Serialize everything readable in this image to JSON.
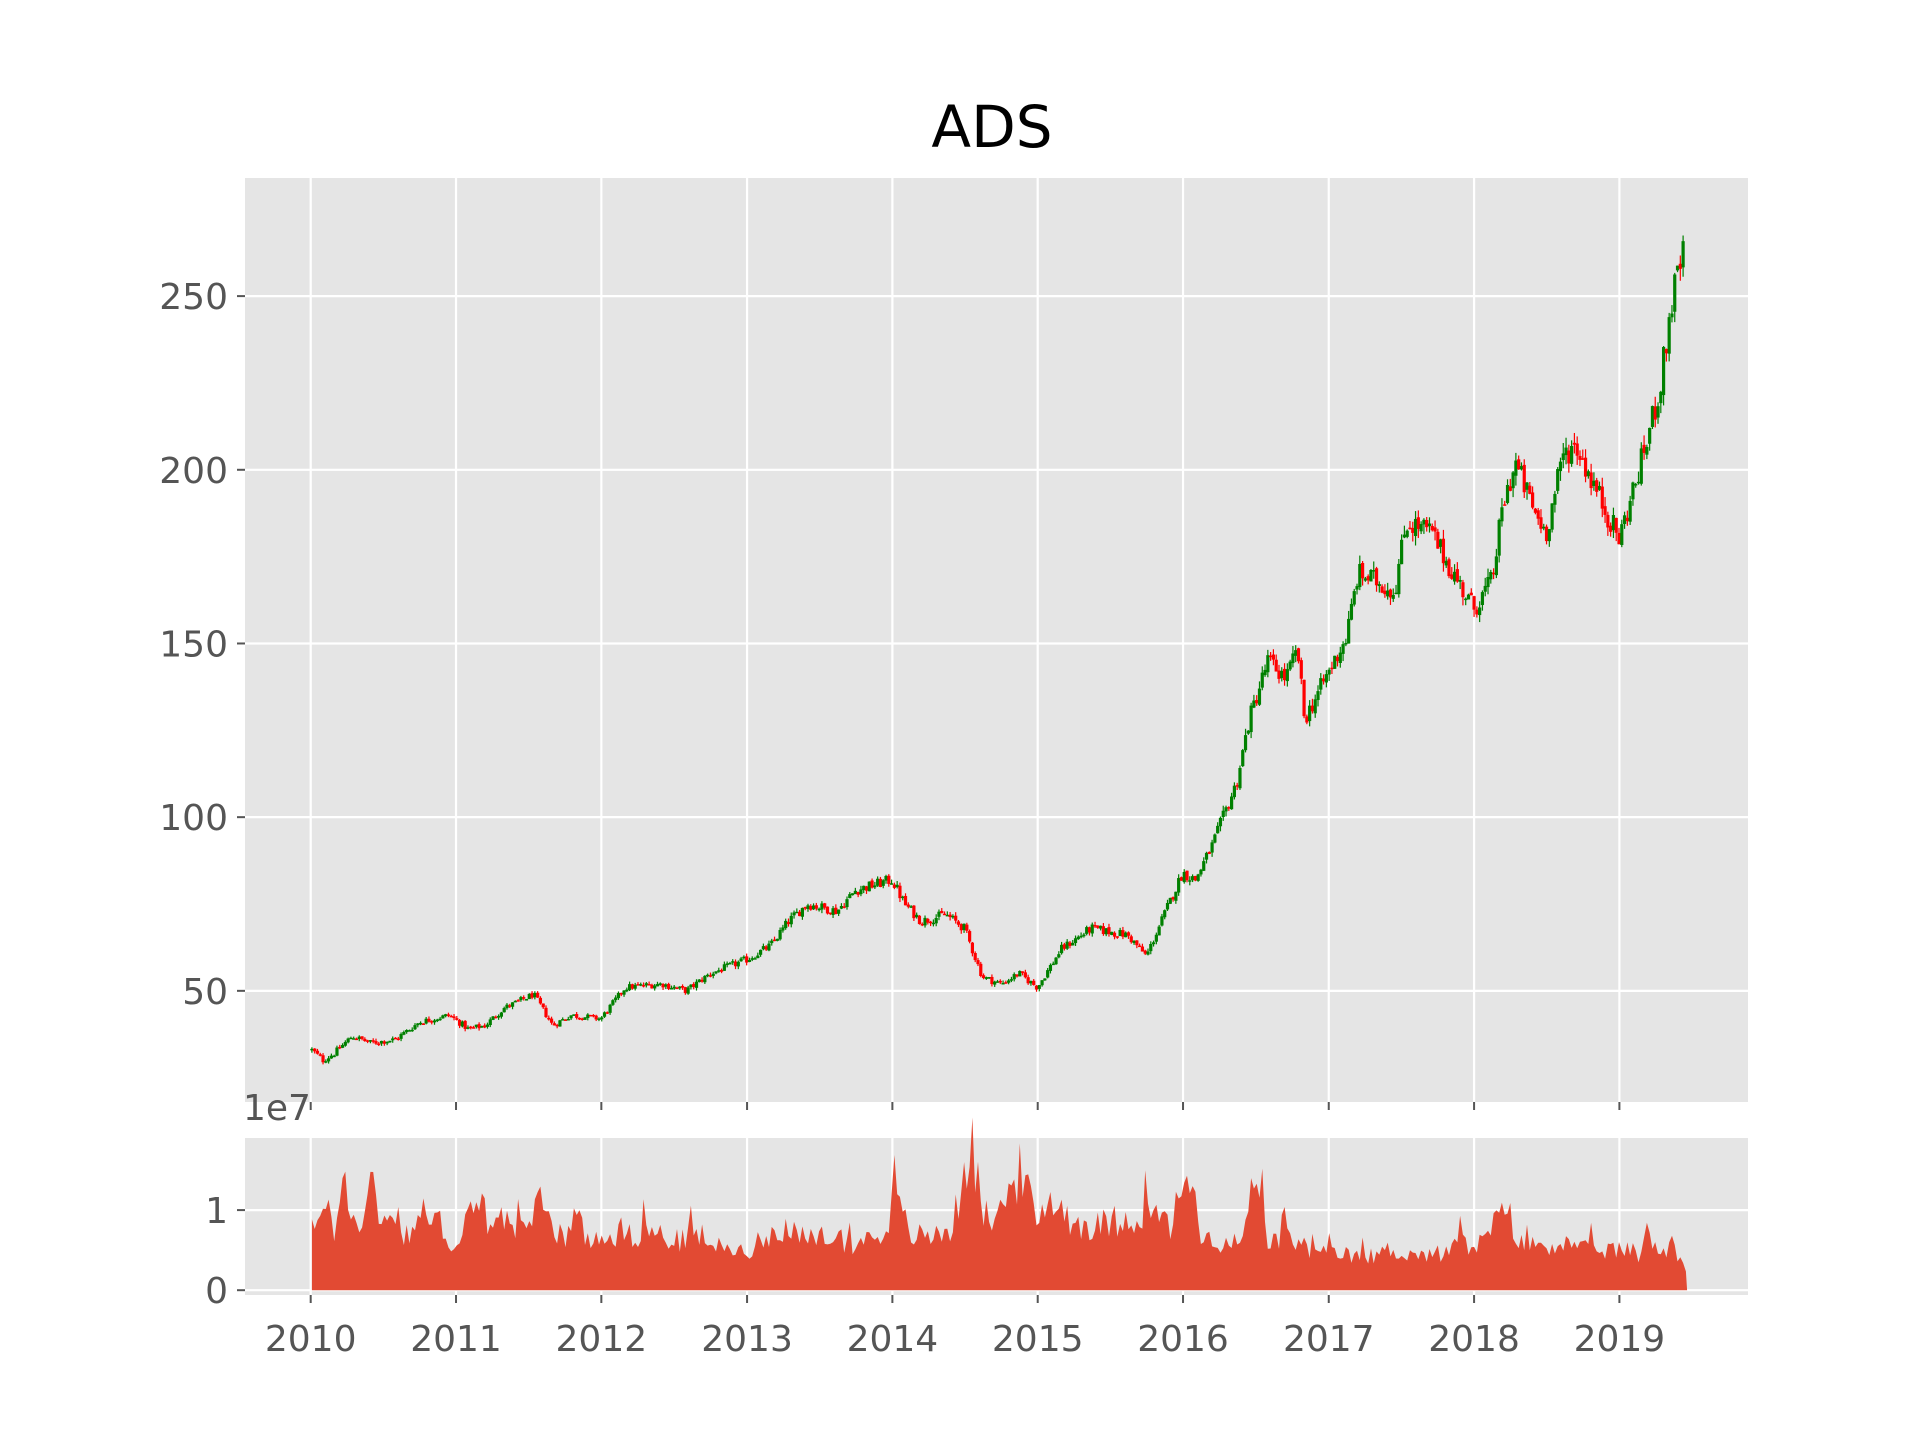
{
  "chart_data": [
    {
      "type": "candlestick",
      "title": "ADS",
      "xlabel": "",
      "ylabel": "",
      "x_ticks": [
        "2010",
        "2011",
        "2012",
        "2013",
        "2014",
        "2015",
        "2016",
        "2017",
        "2018",
        "2019"
      ],
      "y_ticks": [
        50,
        100,
        150,
        200,
        250
      ],
      "xlim": [
        "2009-07-20",
        "2019-11-20"
      ],
      "ylim": [
        18,
        284
      ],
      "grid": true,
      "up_color": "#008000",
      "down_color": "#ff0000",
      "background": "#e5e5e5",
      "price_path": [
        [
          "2010-01-04",
          33
        ],
        [
          "2010-02-01",
          30
        ],
        [
          "2010-03-01",
          32
        ],
        [
          "2010-04-15",
          37
        ],
        [
          "2010-06-01",
          35
        ],
        [
          "2010-08-01",
          36
        ],
        [
          "2010-10-01",
          41
        ],
        [
          "2010-12-15",
          43
        ],
        [
          "2011-02-01",
          39
        ],
        [
          "2011-03-15",
          40
        ],
        [
          "2011-05-01",
          45
        ],
        [
          "2011-07-15",
          49
        ],
        [
          "2011-09-01",
          40
        ],
        [
          "2011-10-15",
          43
        ],
        [
          "2011-12-31",
          42
        ],
        [
          "2012-03-01",
          51
        ],
        [
          "2012-06-01",
          52
        ],
        [
          "2012-08-01",
          50
        ],
        [
          "2012-10-01",
          55
        ],
        [
          "2012-12-31",
          59
        ],
        [
          "2013-03-01",
          63
        ],
        [
          "2013-04-15",
          70
        ],
        [
          "2013-06-01",
          75
        ],
        [
          "2013-08-15",
          73
        ],
        [
          "2013-10-01",
          79
        ],
        [
          "2013-12-31",
          82
        ],
        [
          "2014-02-01",
          75
        ],
        [
          "2014-03-15",
          70
        ],
        [
          "2014-05-15",
          72
        ],
        [
          "2014-07-01",
          68
        ],
        [
          "2014-08-15",
          54
        ],
        [
          "2014-10-01",
          52
        ],
        [
          "2014-11-15",
          55
        ],
        [
          "2014-12-31",
          51
        ],
        [
          "2015-03-01",
          62
        ],
        [
          "2015-05-15",
          68
        ],
        [
          "2015-08-15",
          66
        ],
        [
          "2015-10-01",
          60
        ],
        [
          "2015-11-15",
          72
        ],
        [
          "2015-12-31",
          84
        ],
        [
          "2016-02-01",
          82
        ],
        [
          "2016-03-15",
          92
        ],
        [
          "2016-05-15",
          110
        ],
        [
          "2016-06-15",
          128
        ],
        [
          "2016-08-01",
          145
        ],
        [
          "2016-09-15",
          140
        ],
        [
          "2016-10-15",
          148
        ],
        [
          "2016-11-01",
          128
        ],
        [
          "2016-12-15",
          138
        ],
        [
          "2017-02-15",
          152
        ],
        [
          "2017-03-15",
          170
        ],
        [
          "2017-05-01",
          168
        ],
        [
          "2017-06-15",
          165
        ],
        [
          "2017-07-15",
          185
        ],
        [
          "2017-09-15",
          182
        ],
        [
          "2017-11-01",
          172
        ],
        [
          "2017-12-31",
          160
        ],
        [
          "2018-02-15",
          168
        ],
        [
          "2018-03-15",
          190
        ],
        [
          "2018-04-15",
          202
        ],
        [
          "2018-06-01",
          188
        ],
        [
          "2018-07-01",
          182
        ],
        [
          "2018-08-15",
          205
        ],
        [
          "2018-09-15",
          207
        ],
        [
          "2018-11-01",
          195
        ],
        [
          "2018-12-31",
          180
        ],
        [
          "2019-02-15",
          198
        ],
        [
          "2019-03-15",
          210
        ],
        [
          "2019-04-15",
          225
        ],
        [
          "2019-05-15",
          250
        ],
        [
          "2019-06-15",
          264
        ]
      ]
    },
    {
      "type": "area",
      "title": "",
      "xlabel": "",
      "ylabel": "",
      "offset_text": "1e7",
      "x_ticks": [
        "2010",
        "2011",
        "2012",
        "2013",
        "2014",
        "2015",
        "2016",
        "2017",
        "2018",
        "2019"
      ],
      "y_ticks": [
        0,
        1
      ],
      "y_tick_values": [
        0,
        10000000
      ],
      "xlim": [
        "2009-07-20",
        "2019-11-20"
      ],
      "ylim": [
        -600000,
        19000000
      ],
      "grid": true,
      "fill_color": "#e24a33",
      "background": "#e5e5e5",
      "volume_path": [
        [
          "2010-01-04",
          10000000
        ],
        [
          "2010-01-20",
          8500000
        ],
        [
          "2010-02-10",
          10300000
        ],
        [
          "2010-03-01",
          6000000
        ],
        [
          "2010-03-20",
          16500000
        ],
        [
          "2010-04-10",
          8000000
        ],
        [
          "2010-04-25",
          11000000
        ],
        [
          "2010-05-10",
          7000000
        ],
        [
          "2010-06-01",
          15000000
        ],
        [
          "2010-06-20",
          9000000
        ],
        [
          "2010-07-10",
          10500000
        ],
        [
          "2010-08-01",
          8000000
        ],
        [
          "2010-09-01",
          7000000
        ],
        [
          "2010-10-01",
          9800000
        ],
        [
          "2010-11-01",
          8500000
        ],
        [
          "2010-12-01",
          8000000
        ],
        [
          "2011-01-01",
          5000000
        ],
        [
          "2011-02-01",
          9000000
        ],
        [
          "2011-03-01",
          10500000
        ],
        [
          "2011-04-01",
          8000000
        ],
        [
          "2011-05-01",
          9500000
        ],
        [
          "2011-06-01",
          6500000
        ],
        [
          "2011-07-01",
          8000000
        ],
        [
          "2011-07-20",
          12500000
        ],
        [
          "2011-08-10",
          10000000
        ],
        [
          "2011-09-01",
          8000000
        ],
        [
          "2011-10-01",
          7000000
        ],
        [
          "2011-11-01",
          9000000
        ],
        [
          "2011-12-01",
          6000000
        ],
        [
          "2012-01-01",
          7500000
        ],
        [
          "2012-03-01",
          6500000
        ],
        [
          "2012-05-01",
          7500000
        ],
        [
          "2012-07-01",
          6000000
        ],
        [
          "2012-09-01",
          7000000
        ],
        [
          "2012-11-01",
          5000000
        ],
        [
          "2012-12-31",
          5000000
        ],
        [
          "2013-02-01",
          6000000
        ],
        [
          "2013-04-01",
          8000000
        ],
        [
          "2013-06-01",
          6000000
        ],
        [
          "2013-08-01",
          7000000
        ],
        [
          "2013-10-01",
          5500000
        ],
        [
          "2013-12-01",
          7000000
        ],
        [
          "2014-01-10",
          11000000
        ],
        [
          "2014-02-15",
          7000000
        ],
        [
          "2014-04-01",
          6500000
        ],
        [
          "2014-06-01",
          8000000
        ],
        [
          "2014-07-20",
          18000000
        ],
        [
          "2014-08-20",
          9000000
        ],
        [
          "2014-10-01",
          10000000
        ],
        [
          "2014-11-20",
          15000000
        ],
        [
          "2014-12-31",
          8000000
        ],
        [
          "2015-02-01",
          12000000
        ],
        [
          "2015-04-01",
          8500000
        ],
        [
          "2015-06-01",
          8000000
        ],
        [
          "2015-08-01",
          9000000
        ],
        [
          "2015-10-01",
          9500000
        ],
        [
          "2015-12-01",
          8000000
        ],
        [
          "2016-01-10",
          14500000
        ],
        [
          "2016-02-15",
          7000000
        ],
        [
          "2016-04-01",
          5000000
        ],
        [
          "2016-06-01",
          6500000
        ],
        [
          "2016-07-01",
          13500000
        ],
        [
          "2016-08-01",
          6000000
        ],
        [
          "2016-10-01",
          6500000
        ],
        [
          "2016-12-01",
          4500000
        ],
        [
          "2017-02-01",
          4500000
        ],
        [
          "2017-04-01",
          4000000
        ],
        [
          "2017-06-01",
          5000000
        ],
        [
          "2017-08-01",
          4500000
        ],
        [
          "2017-10-01",
          4000000
        ],
        [
          "2017-12-01",
          6000000
        ],
        [
          "2018-01-10",
          5500000
        ],
        [
          "2018-02-15",
          7000000
        ],
        [
          "2018-03-15",
          13000000
        ],
        [
          "2018-04-15",
          6000000
        ],
        [
          "2018-06-01",
          5500000
        ],
        [
          "2018-08-01",
          6000000
        ],
        [
          "2018-10-01",
          5000000
        ],
        [
          "2018-12-01",
          5000000
        ],
        [
          "2019-01-10",
          5200000
        ],
        [
          "2019-02-15",
          4000000
        ],
        [
          "2019-03-15",
          7500000
        ],
        [
          "2019-04-15",
          4500000
        ],
        [
          "2019-05-15",
          6500000
        ],
        [
          "2019-06-01",
          4000000
        ],
        [
          "2019-06-20",
          2500000
        ]
      ]
    }
  ]
}
